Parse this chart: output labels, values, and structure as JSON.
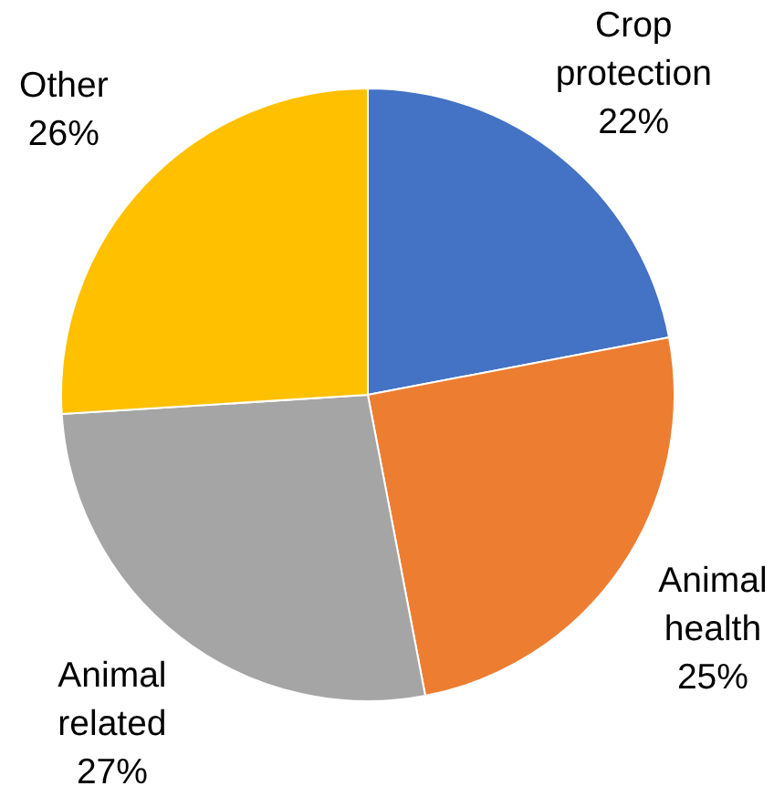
{
  "chart_data": {
    "type": "pie",
    "categories": [
      "Crop protection",
      "Animal health",
      "Animal related",
      "Other"
    ],
    "values": [
      22,
      25,
      27,
      26
    ],
    "value_labels": [
      "22%",
      "25%",
      "27%",
      "26%"
    ],
    "colors": [
      "#4472c4",
      "#ed7d31",
      "#a5a5a5",
      "#ffc000"
    ],
    "legend": false
  }
}
